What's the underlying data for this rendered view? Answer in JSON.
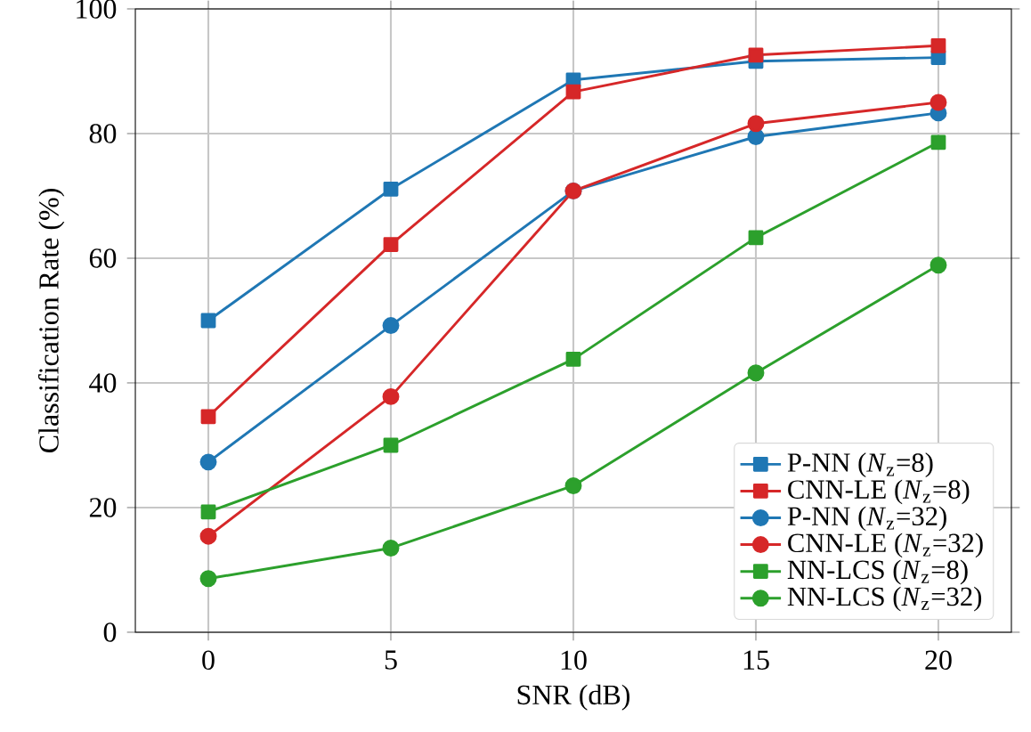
{
  "chart_data": {
    "type": "line",
    "xlabel": "SNR (dB)",
    "ylabel": "Classification Rate (%)",
    "x": [
      0,
      5,
      10,
      15,
      20
    ],
    "xlim": [
      -2,
      22
    ],
    "ylim": [
      0,
      100
    ],
    "xticks": [
      0,
      5,
      10,
      15,
      20
    ],
    "yticks": [
      0,
      20,
      40,
      60,
      80,
      100
    ],
    "grid": true,
    "legend": "bottom right",
    "series": [
      {
        "name": "P-NN (*N*$_{z}$=8)",
        "color": "#1f77b4",
        "marker": "square",
        "values": [
          50.0,
          71.1,
          88.6,
          91.6,
          92.2
        ]
      },
      {
        "name": "CNN-LE (*N*$_{z}$=8)",
        "color": "#d62728",
        "marker": "square",
        "values": [
          34.6,
          62.2,
          86.7,
          92.6,
          94.1
        ]
      },
      {
        "name": "P-NN (*N*$_{z}$=32)",
        "color": "#1f77b4",
        "marker": "circle",
        "values": [
          27.3,
          49.2,
          70.8,
          79.5,
          83.3
        ]
      },
      {
        "name": "CNN-LE (*N*$_{z}$=32)",
        "color": "#d62728",
        "marker": "circle",
        "values": [
          15.4,
          37.8,
          70.8,
          81.6,
          85.0
        ]
      },
      {
        "name": "NN-LCS (*N*$_{z}$=8)",
        "color": "#2ca02c",
        "marker": "square",
        "values": [
          19.3,
          30.0,
          43.8,
          63.3,
          78.6
        ]
      },
      {
        "name": "NN-LCS (*N*$_{z}$=32)",
        "color": "#2ca02c",
        "marker": "circle",
        "values": [
          8.6,
          13.5,
          23.5,
          41.6,
          58.9
        ]
      }
    ]
  }
}
